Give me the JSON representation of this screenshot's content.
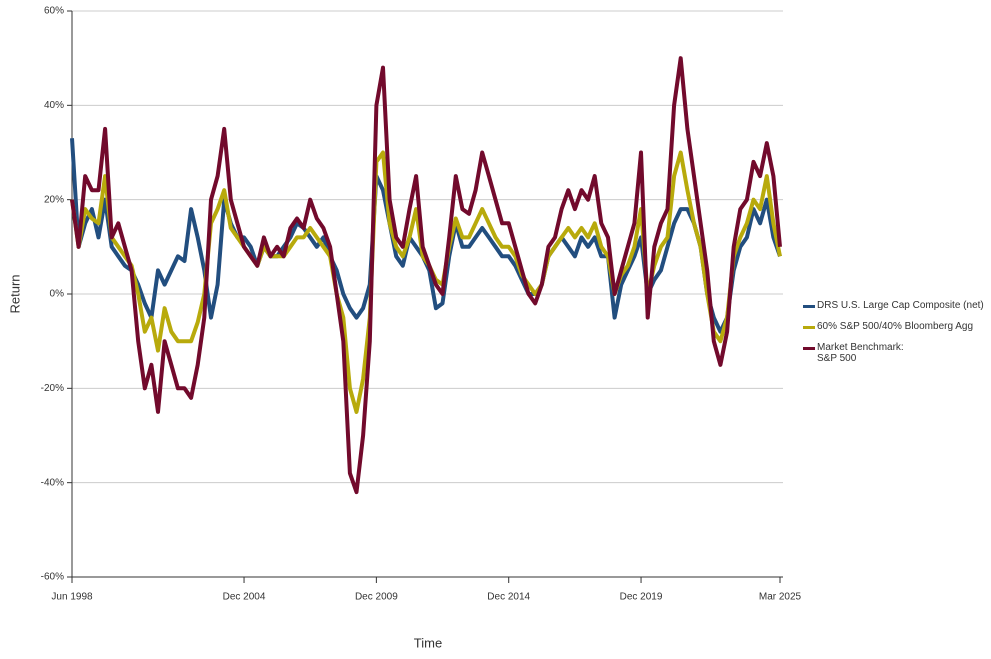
{
  "chart_data": {
    "type": "line",
    "xlabel": "Time",
    "ylabel": "Return",
    "categories": [
      "Jun 1998",
      null,
      null,
      null,
      null,
      null,
      null,
      null,
      null,
      null,
      null,
      null,
      null,
      null,
      null,
      null,
      null,
      null,
      null,
      null,
      null,
      null,
      null,
      null,
      null,
      null,
      "Dec 2004",
      null,
      null,
      null,
      null,
      null,
      null,
      null,
      null,
      null,
      null,
      null,
      null,
      null,
      null,
      null,
      null,
      null,
      null,
      null,
      "Dec 2009",
      null,
      null,
      null,
      null,
      null,
      null,
      null,
      null,
      null,
      null,
      null,
      null,
      null,
      null,
      null,
      null,
      null,
      null,
      null,
      "Dec 2014",
      null,
      null,
      null,
      null,
      null,
      null,
      null,
      null,
      null,
      null,
      null,
      null,
      null,
      null,
      null,
      null,
      null,
      null,
      null,
      "Dec 2019",
      null,
      null,
      null,
      null,
      null,
      null,
      null,
      null,
      null,
      null,
      null,
      null,
      null,
      null,
      null,
      null,
      null,
      null,
      null,
      null,
      "Mar 2025"
    ],
    "series": [
      {
        "name": "DRS U.S. Large Cap Composite (net)",
        "color": "#224e7f",
        "values": [
          33,
          10,
          15,
          18,
          12,
          20,
          10,
          8,
          6,
          5,
          2,
          -2,
          -5,
          5,
          2,
          5,
          8,
          7,
          18,
          12,
          5,
          -5,
          2,
          20,
          15,
          12,
          12,
          10,
          6,
          10,
          8,
          8,
          10,
          12,
          15,
          14,
          12,
          10,
          12,
          8,
          5,
          0,
          -3,
          -5,
          -3,
          2,
          25,
          22,
          15,
          8,
          6,
          12,
          10,
          8,
          5,
          -3,
          -2,
          8,
          15,
          10,
          10,
          12,
          14,
          12,
          10,
          8,
          8,
          6,
          3,
          0,
          0,
          2,
          8,
          10,
          12,
          10,
          8,
          12,
          10,
          12,
          8,
          8,
          -5,
          2,
          5,
          8,
          12,
          0,
          3,
          5,
          10,
          15,
          18,
          18,
          15,
          10,
          0,
          -5,
          -8,
          -5,
          5,
          10,
          12,
          18,
          15,
          20,
          12,
          8
        ]
      },
      {
        "name": "60% S&P 500/40% Bloomberg Agg",
        "color": "#b8aa0c",
        "values": [
          20,
          10,
          18,
          16,
          15,
          25,
          12,
          10,
          8,
          6,
          0,
          -8,
          -5,
          -12,
          -3,
          -8,
          -10,
          -10,
          -10,
          -6,
          0,
          15,
          18,
          22,
          14,
          12,
          10,
          8,
          6,
          10,
          8,
          8,
          8,
          10,
          12,
          12,
          14,
          12,
          10,
          8,
          0,
          -5,
          -20,
          -25,
          -18,
          -5,
          28,
          30,
          15,
          10,
          8,
          12,
          18,
          8,
          6,
          3,
          2,
          10,
          16,
          12,
          12,
          15,
          18,
          15,
          12,
          10,
          10,
          8,
          4,
          2,
          0,
          2,
          8,
          10,
          12,
          14,
          12,
          14,
          12,
          15,
          10,
          8,
          0,
          4,
          6,
          10,
          18,
          0,
          6,
          10,
          12,
          25,
          30,
          22,
          15,
          10,
          0,
          -8,
          -10,
          -5,
          8,
          12,
          15,
          20,
          18,
          25,
          15,
          8
        ]
      },
      {
        "name": "Market Benchmark:\nS&P 500",
        "color": "#720a2c",
        "values": [
          20,
          10,
          25,
          22,
          22,
          35,
          12,
          15,
          10,
          5,
          -10,
          -20,
          -15,
          -25,
          -10,
          -15,
          -20,
          -20,
          -22,
          -15,
          -5,
          20,
          25,
          35,
          20,
          15,
          10,
          8,
          6,
          12,
          8,
          10,
          8,
          14,
          16,
          14,
          20,
          16,
          14,
          10,
          0,
          -10,
          -38,
          -42,
          -30,
          -10,
          40,
          48,
          20,
          12,
          10,
          18,
          25,
          10,
          6,
          2,
          0,
          12,
          25,
          18,
          17,
          22,
          30,
          25,
          20,
          15,
          15,
          10,
          5,
          0,
          -2,
          2,
          10,
          12,
          18,
          22,
          18,
          22,
          20,
          25,
          15,
          12,
          0,
          5,
          10,
          15,
          30,
          -5,
          10,
          15,
          18,
          40,
          50,
          35,
          25,
          15,
          5,
          -10,
          -15,
          -8,
          10,
          18,
          20,
          28,
          25,
          32,
          25,
          10
        ]
      }
    ],
    "ylim": [
      -60,
      60
    ],
    "yticks": [
      {
        "value": -60,
        "label": "-60%"
      },
      {
        "value": -40,
        "label": "-40%"
      },
      {
        "value": -20,
        "label": "-20%"
      },
      {
        "value": 0,
        "label": "0%"
      },
      {
        "value": 20,
        "label": "20%"
      },
      {
        "value": 40,
        "label": "40%"
      },
      {
        "value": 60,
        "label": "60%"
      }
    ],
    "grid": true
  }
}
